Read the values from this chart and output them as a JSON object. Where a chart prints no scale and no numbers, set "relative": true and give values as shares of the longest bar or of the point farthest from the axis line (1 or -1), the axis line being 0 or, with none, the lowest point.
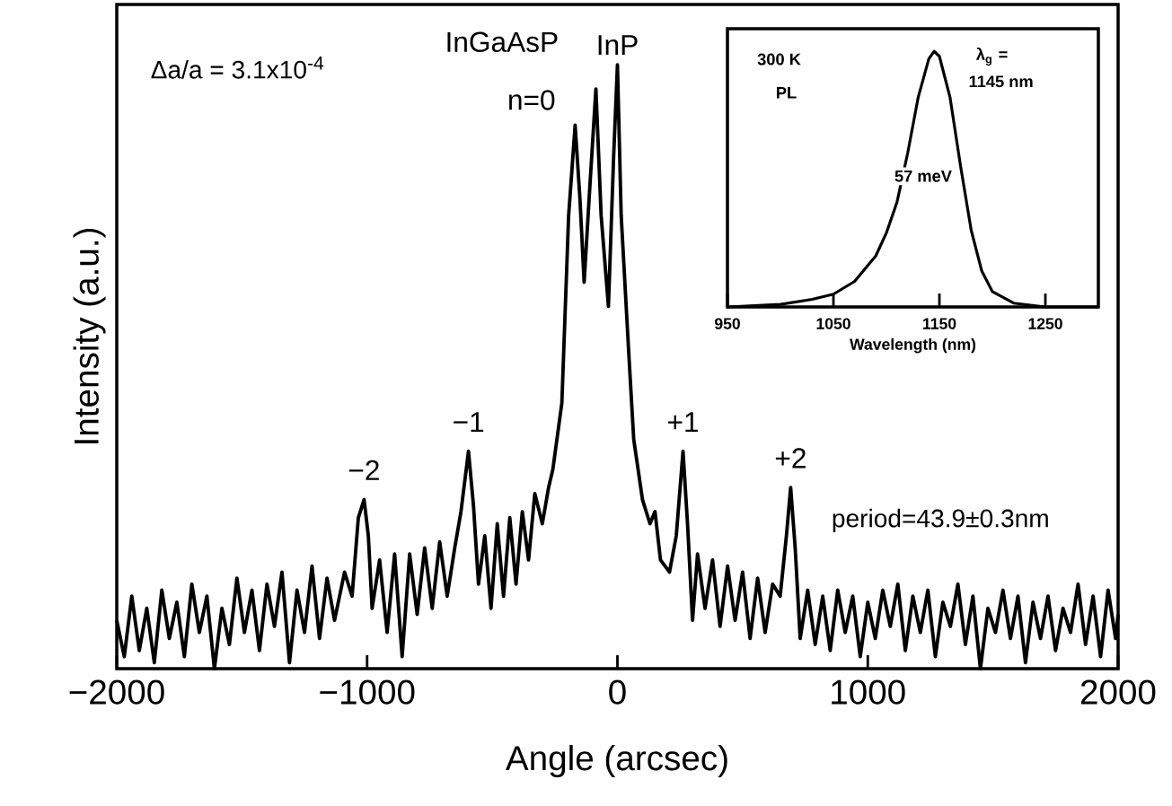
{
  "chart_data": [
    {
      "type": "line",
      "xlabel": "Angle (arcsec)",
      "ylabel": "Intensity (a.u.)",
      "relative": true,
      "xlim": [
        -2000,
        2000
      ],
      "xticks": [
        {
          "value": -2000,
          "label": "−2000"
        },
        {
          "value": -1000,
          "label": "−1000"
        },
        0,
        1000,
        2000
      ],
      "color": "#000000",
      "x": [
        -2000,
        -1970,
        -1940,
        -1910,
        -1880,
        -1850,
        -1820,
        -1790,
        -1760,
        -1730,
        -1700,
        -1670,
        -1640,
        -1610,
        -1580,
        -1550,
        -1520,
        -1490,
        -1460,
        -1430,
        -1400,
        -1370,
        -1340,
        -1310,
        -1280,
        -1250,
        -1220,
        -1190,
        -1160,
        -1130,
        -1090,
        -1060,
        -1035,
        -1012,
        -995,
        -980,
        -950,
        -920,
        -890,
        -860,
        -830,
        -800,
        -770,
        -740,
        -710,
        -680,
        -650,
        -625,
        -595,
        -575,
        -555,
        -530,
        -505,
        -480,
        -455,
        -430,
        -405,
        -380,
        -355,
        -330,
        -300,
        -275,
        -258,
        -222,
        -195,
        -169,
        -150,
        -133,
        -110,
        -86,
        -65,
        -36,
        -15,
        0,
        15,
        47,
        65,
        100,
        130,
        150,
        172,
        208,
        235,
        262,
        280,
        300,
        320,
        350,
        380,
        410,
        440,
        470,
        500,
        530,
        560,
        590,
        620,
        650,
        675,
        692,
        710,
        730,
        760,
        790,
        820,
        850,
        880,
        910,
        940,
        970,
        1000,
        1030,
        1060,
        1090,
        1120,
        1150,
        1180,
        1210,
        1240,
        1270,
        1300,
        1330,
        1360,
        1390,
        1420,
        1450,
        1480,
        1510,
        1540,
        1570,
        1600,
        1630,
        1660,
        1690,
        1720,
        1750,
        1780,
        1810,
        1840,
        1870,
        1900,
        1930,
        1960,
        1990,
        2000
      ],
      "values": [
        0.08,
        0.02,
        0.12,
        0.03,
        0.1,
        0.01,
        0.13,
        0.05,
        0.11,
        0.02,
        0.14,
        0.06,
        0.12,
        0.0,
        0.1,
        0.04,
        0.15,
        0.06,
        0.13,
        0.03,
        0.14,
        0.07,
        0.16,
        0.01,
        0.13,
        0.06,
        0.17,
        0.05,
        0.15,
        0.08,
        0.16,
        0.12,
        0.25,
        0.28,
        0.22,
        0.1,
        0.18,
        0.06,
        0.19,
        0.02,
        0.19,
        0.09,
        0.2,
        0.1,
        0.21,
        0.12,
        0.2,
        0.26,
        0.36,
        0.27,
        0.14,
        0.22,
        0.1,
        0.24,
        0.12,
        0.25,
        0.14,
        0.26,
        0.18,
        0.29,
        0.24,
        0.3,
        0.33,
        0.44,
        0.75,
        0.9,
        0.78,
        0.64,
        0.8,
        0.96,
        0.75,
        0.6,
        0.85,
        1.0,
        0.75,
        0.51,
        0.38,
        0.28,
        0.24,
        0.26,
        0.18,
        0.16,
        0.22,
        0.36,
        0.24,
        0.08,
        0.19,
        0.1,
        0.18,
        0.07,
        0.17,
        0.08,
        0.16,
        0.05,
        0.15,
        0.06,
        0.14,
        0.12,
        0.22,
        0.3,
        0.2,
        0.05,
        0.13,
        0.04,
        0.12,
        0.03,
        0.13,
        0.06,
        0.12,
        0.02,
        0.11,
        0.05,
        0.13,
        0.07,
        0.14,
        0.03,
        0.12,
        0.06,
        0.13,
        0.02,
        0.11,
        0.07,
        0.14,
        0.04,
        0.12,
        0.0,
        0.1,
        0.06,
        0.13,
        0.05,
        0.12,
        0.01,
        0.11,
        0.05,
        0.12,
        0.03,
        0.1,
        0.06,
        0.14,
        0.04,
        0.12,
        0.02,
        0.13,
        0.05,
        0.09
      ],
      "annotations": [
        "Δa/a = 3.1x10$^{-4}$",
        {
          "text": "InGaAsP",
          "x": -169,
          "y": 0.9
        },
        {
          "text": "n=0",
          "x": -169,
          "y": 0.9
        },
        {
          "text": "InP",
          "x": 0,
          "y": 1.0
        },
        {
          "text": "−2",
          "x": -1012,
          "y": 0.28
        },
        {
          "text": "−1",
          "x": -595,
          "y": 0.36
        },
        {
          "text": "+1",
          "x": 262,
          "y": 0.36
        },
        {
          "text": "+2",
          "x": 692,
          "y": 0.3
        },
        "period=43.9±0.3nm"
      ]
    },
    {
      "type": "line",
      "xlabel": "Wavelength (nm)",
      "relative": true,
      "xlim": [
        950,
        1300
      ],
      "xticks": [
        950,
        1050,
        1150,
        1250
      ],
      "color": "#000000",
      "x": [
        950,
        1000,
        1030,
        1050,
        1070,
        1090,
        1100,
        1110,
        1120,
        1130,
        1140,
        1145,
        1150,
        1160,
        1170,
        1180,
        1190,
        1200,
        1220,
        1250,
        1300
      ],
      "values": [
        0.0,
        0.01,
        0.03,
        0.05,
        0.1,
        0.2,
        0.29,
        0.41,
        0.6,
        0.82,
        0.97,
        1.0,
        0.98,
        0.82,
        0.55,
        0.3,
        0.14,
        0.06,
        0.015,
        0.0,
        0.0
      ],
      "annotations": [
        "300 K",
        "PL",
        "λ$_{g}$ =",
        "1145 nm",
        "57 meV"
      ]
    }
  ]
}
